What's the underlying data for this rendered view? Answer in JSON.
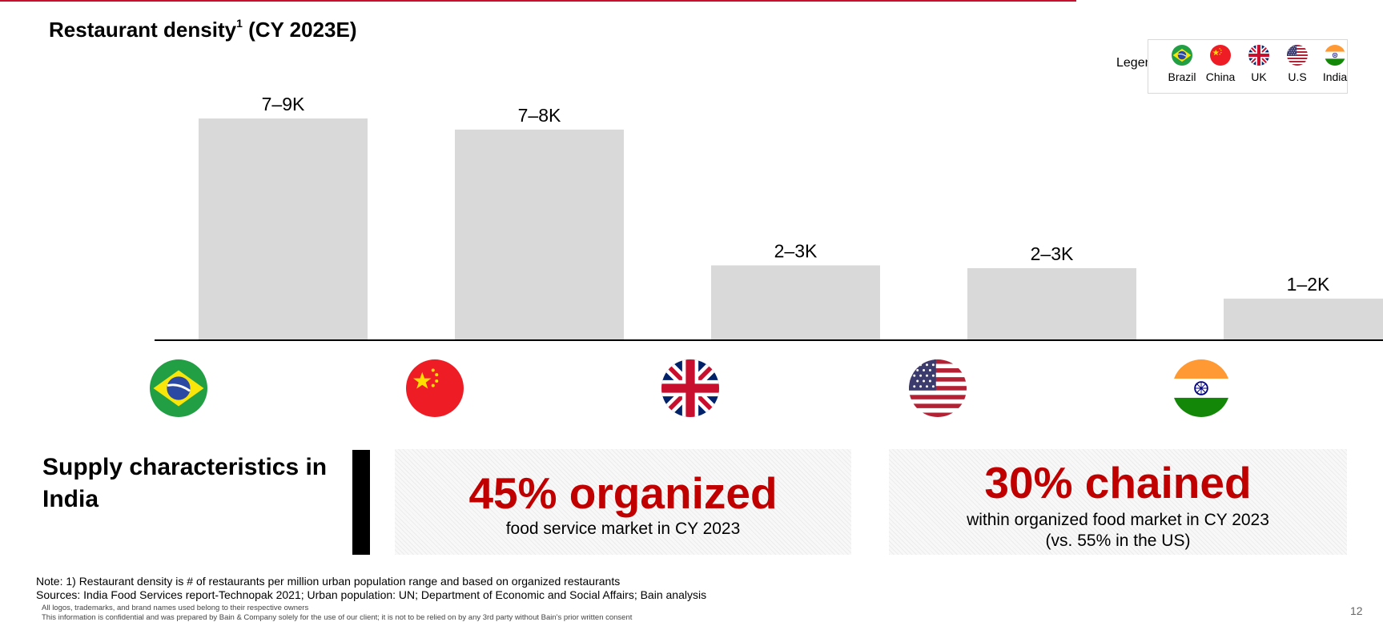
{
  "title": "Restaurant density",
  "title_sup": "1",
  "title_suffix": "(CY 2023E)",
  "legend": {
    "label": "Legend",
    "items": [
      {
        "flag": "brazil-flag-icon",
        "label": "Brazil"
      },
      {
        "flag": "china-flag-icon",
        "label": "China"
      },
      {
        "flag": "uk-flag-icon",
        "label": "UK"
      },
      {
        "flag": "us-flag-icon",
        "label": "U.S"
      },
      {
        "flag": "india-flag-icon",
        "label": "India"
      }
    ]
  },
  "chart_data": {
    "type": "bar",
    "title": "Restaurant density (CY 2023E)",
    "unit": "restaurants per million urban population",
    "categories": [
      "Brazil",
      "China",
      "UK",
      "U.S",
      "India"
    ],
    "data_labels": [
      "7–9K",
      "7–8K",
      "2–3K",
      "2–3K",
      "1–2K"
    ],
    "ranges": [
      [
        7000,
        9000
      ],
      [
        7000,
        8000
      ],
      [
        2000,
        3000
      ],
      [
        2000,
        3000
      ],
      [
        1000,
        2000
      ]
    ],
    "values": [
      8000,
      7600,
      2700,
      2600,
      1500
    ],
    "ylim": [
      0,
      8000
    ],
    "grid": false,
    "legend_position": "top-right",
    "bar_color": "#d9d9d9"
  },
  "supply": {
    "title": "Supply characteristics in India",
    "box1": {
      "headline": "45% organized",
      "sub": "food service market in CY 2023"
    },
    "box2": {
      "headline": "30% chained",
      "sub1": "within organized food market in CY 2023",
      "sub2": "(vs. 55% in the US)"
    }
  },
  "footer": {
    "note": "Note: 1) Restaurant density is # of restaurants per million urban population range and based on organized restaurants",
    "sources": "Sources: India Food Services report-Technopak 2021; Urban population: UN; Department of Economic and Social Affairs; Bain analysis",
    "fine1": "All logos, trademarks, and brand names used belong to their respective owners",
    "fine2": "This information is confidential and was prepared by Bain & Company solely for the use of our client; it is not to be relied on by any 3rd party without Bain's prior written consent",
    "page": "12"
  },
  "colors": {
    "accent": "#c00000",
    "bar": "#d9d9d9",
    "topline": "#c8102e"
  }
}
